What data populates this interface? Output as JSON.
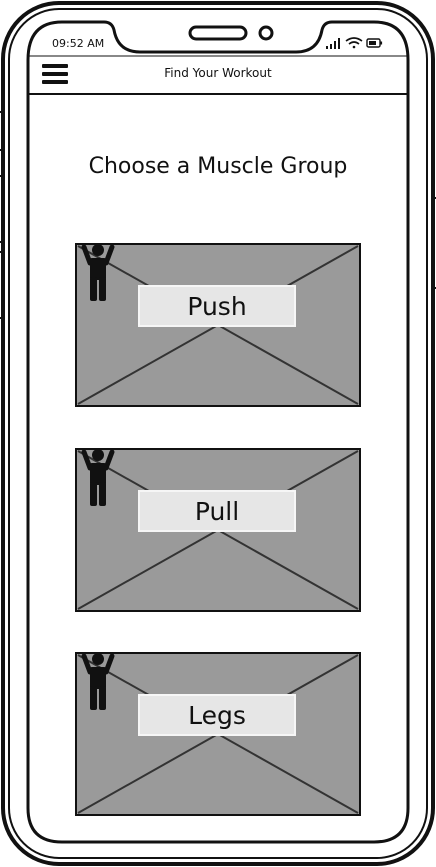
{
  "status_bar": {
    "time": "09:52 AM",
    "icons": [
      "signal-icon",
      "wifi-icon",
      "battery-icon"
    ]
  },
  "header": {
    "menu_icon": "hamburger-menu-icon",
    "title": "Find Your Workout"
  },
  "main": {
    "heading": "Choose a Muscle Group",
    "cards": [
      {
        "label": "Push",
        "icon": "person-icon"
      },
      {
        "label": "Pull",
        "icon": "person-icon"
      },
      {
        "label": "Legs",
        "icon": "person-icon"
      }
    ]
  },
  "colors": {
    "placeholder_fill": "#9a9a9a",
    "label_fill": "#e6e6e6",
    "stroke": "#111111"
  }
}
